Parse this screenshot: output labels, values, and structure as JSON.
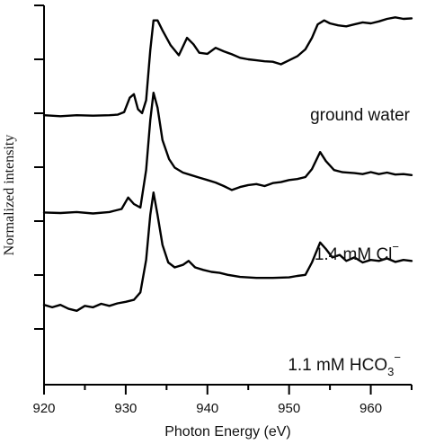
{
  "chart_data": {
    "type": "line",
    "title": "",
    "xlabel": "Photon Energy (eV)",
    "ylabel": "Normalized intensity",
    "xlim": [
      920,
      965
    ],
    "x_ticks": [
      920,
      930,
      940,
      950,
      960
    ],
    "y_ticks_shown": 7,
    "y_tick_labels": [],
    "grid": false,
    "legend": "none",
    "series": [
      {
        "label_parts": {
          "main": "ground water",
          "sub": "",
          "sup": ""
        },
        "points": [
          [
            920,
            5.4
          ],
          [
            922,
            5.38
          ],
          [
            924,
            5.4
          ],
          [
            926,
            5.39
          ],
          [
            928,
            5.4
          ],
          [
            929,
            5.41
          ],
          [
            929.8,
            5.46
          ],
          [
            930.5,
            5.75
          ],
          [
            931,
            5.82
          ],
          [
            931.5,
            5.52
          ],
          [
            932,
            5.44
          ],
          [
            932.5,
            5.7
          ],
          [
            933,
            6.7
          ],
          [
            933.4,
            7.3
          ],
          [
            933.9,
            7.3
          ],
          [
            934.5,
            7.1
          ],
          [
            935.5,
            6.8
          ],
          [
            936.5,
            6.6
          ],
          [
            937.5,
            6.95
          ],
          [
            938.3,
            6.82
          ],
          [
            939,
            6.65
          ],
          [
            940,
            6.63
          ],
          [
            941,
            6.75
          ],
          [
            942,
            6.68
          ],
          [
            943,
            6.62
          ],
          [
            944,
            6.55
          ],
          [
            945,
            6.52
          ],
          [
            946,
            6.5
          ],
          [
            947,
            6.48
          ],
          [
            948,
            6.47
          ],
          [
            949,
            6.42
          ],
          [
            950,
            6.5
          ],
          [
            951,
            6.58
          ],
          [
            952,
            6.72
          ],
          [
            952.8,
            6.95
          ],
          [
            953.5,
            7.22
          ],
          [
            954.3,
            7.3
          ],
          [
            955,
            7.24
          ],
          [
            956,
            7.2
          ],
          [
            957,
            7.18
          ],
          [
            958,
            7.22
          ],
          [
            959,
            7.26
          ],
          [
            960,
            7.24
          ],
          [
            961,
            7.28
          ],
          [
            962,
            7.33
          ],
          [
            963,
            7.36
          ],
          [
            964,
            7.33
          ],
          [
            965,
            7.34
          ]
        ]
      },
      {
        "label_parts": {
          "main": "1.4 mM Cl",
          "sub": "",
          "sup": "−"
        },
        "points": [
          [
            920,
            3.45
          ],
          [
            922,
            3.44
          ],
          [
            924,
            3.46
          ],
          [
            926,
            3.43
          ],
          [
            928,
            3.46
          ],
          [
            929.5,
            3.52
          ],
          [
            930.3,
            3.75
          ],
          [
            931,
            3.62
          ],
          [
            931.8,
            3.55
          ],
          [
            932.5,
            4.3
          ],
          [
            933,
            5.3
          ],
          [
            933.4,
            5.85
          ],
          [
            933.9,
            5.55
          ],
          [
            934.5,
            4.9
          ],
          [
            935.3,
            4.52
          ],
          [
            936,
            4.35
          ],
          [
            937,
            4.25
          ],
          [
            938,
            4.2
          ],
          [
            939,
            4.15
          ],
          [
            940,
            4.1
          ],
          [
            941,
            4.05
          ],
          [
            942,
            3.98
          ],
          [
            943,
            3.9
          ],
          [
            944,
            3.96
          ],
          [
            945,
            4.0
          ],
          [
            946,
            4.02
          ],
          [
            947,
            3.98
          ],
          [
            948,
            4.04
          ],
          [
            949,
            4.06
          ],
          [
            950,
            4.1
          ],
          [
            951,
            4.12
          ],
          [
            952,
            4.16
          ],
          [
            952.8,
            4.32
          ],
          [
            953.8,
            4.66
          ],
          [
            954.5,
            4.48
          ],
          [
            955.5,
            4.3
          ],
          [
            956.5,
            4.26
          ],
          [
            958,
            4.24
          ],
          [
            959,
            4.22
          ],
          [
            960,
            4.26
          ],
          [
            961,
            4.22
          ],
          [
            962,
            4.25
          ],
          [
            963,
            4.21
          ],
          [
            964,
            4.22
          ],
          [
            965,
            4.2
          ]
        ]
      },
      {
        "label_parts": {
          "main": "1.1 mM HCO",
          "sub": "3",
          "sup": "−"
        },
        "points": [
          [
            920,
            1.6
          ],
          [
            921,
            1.55
          ],
          [
            922,
            1.6
          ],
          [
            923,
            1.52
          ],
          [
            924,
            1.48
          ],
          [
            925,
            1.58
          ],
          [
            926,
            1.55
          ],
          [
            927,
            1.62
          ],
          [
            928,
            1.58
          ],
          [
            929,
            1.63
          ],
          [
            930,
            1.66
          ],
          [
            931,
            1.7
          ],
          [
            931.8,
            1.85
          ],
          [
            932.5,
            2.5
          ],
          [
            933,
            3.4
          ],
          [
            933.4,
            3.85
          ],
          [
            933.9,
            3.4
          ],
          [
            934.5,
            2.8
          ],
          [
            935.2,
            2.45
          ],
          [
            936,
            2.35
          ],
          [
            937,
            2.4
          ],
          [
            937.7,
            2.48
          ],
          [
            938.5,
            2.35
          ],
          [
            939.5,
            2.3
          ],
          [
            940.5,
            2.26
          ],
          [
            941.5,
            2.24
          ],
          [
            942.5,
            2.2
          ],
          [
            944,
            2.16
          ],
          [
            946,
            2.14
          ],
          [
            948,
            2.14
          ],
          [
            950,
            2.15
          ],
          [
            951,
            2.18
          ],
          [
            952,
            2.2
          ],
          [
            952.8,
            2.45
          ],
          [
            953.8,
            2.85
          ],
          [
            954.5,
            2.72
          ],
          [
            955.3,
            2.55
          ],
          [
            956.2,
            2.6
          ],
          [
            957,
            2.48
          ],
          [
            958,
            2.55
          ],
          [
            959,
            2.45
          ],
          [
            960,
            2.5
          ],
          [
            961,
            2.48
          ],
          [
            962,
            2.53
          ],
          [
            963,
            2.46
          ],
          [
            964,
            2.5
          ],
          [
            965,
            2.48
          ]
        ]
      }
    ]
  }
}
